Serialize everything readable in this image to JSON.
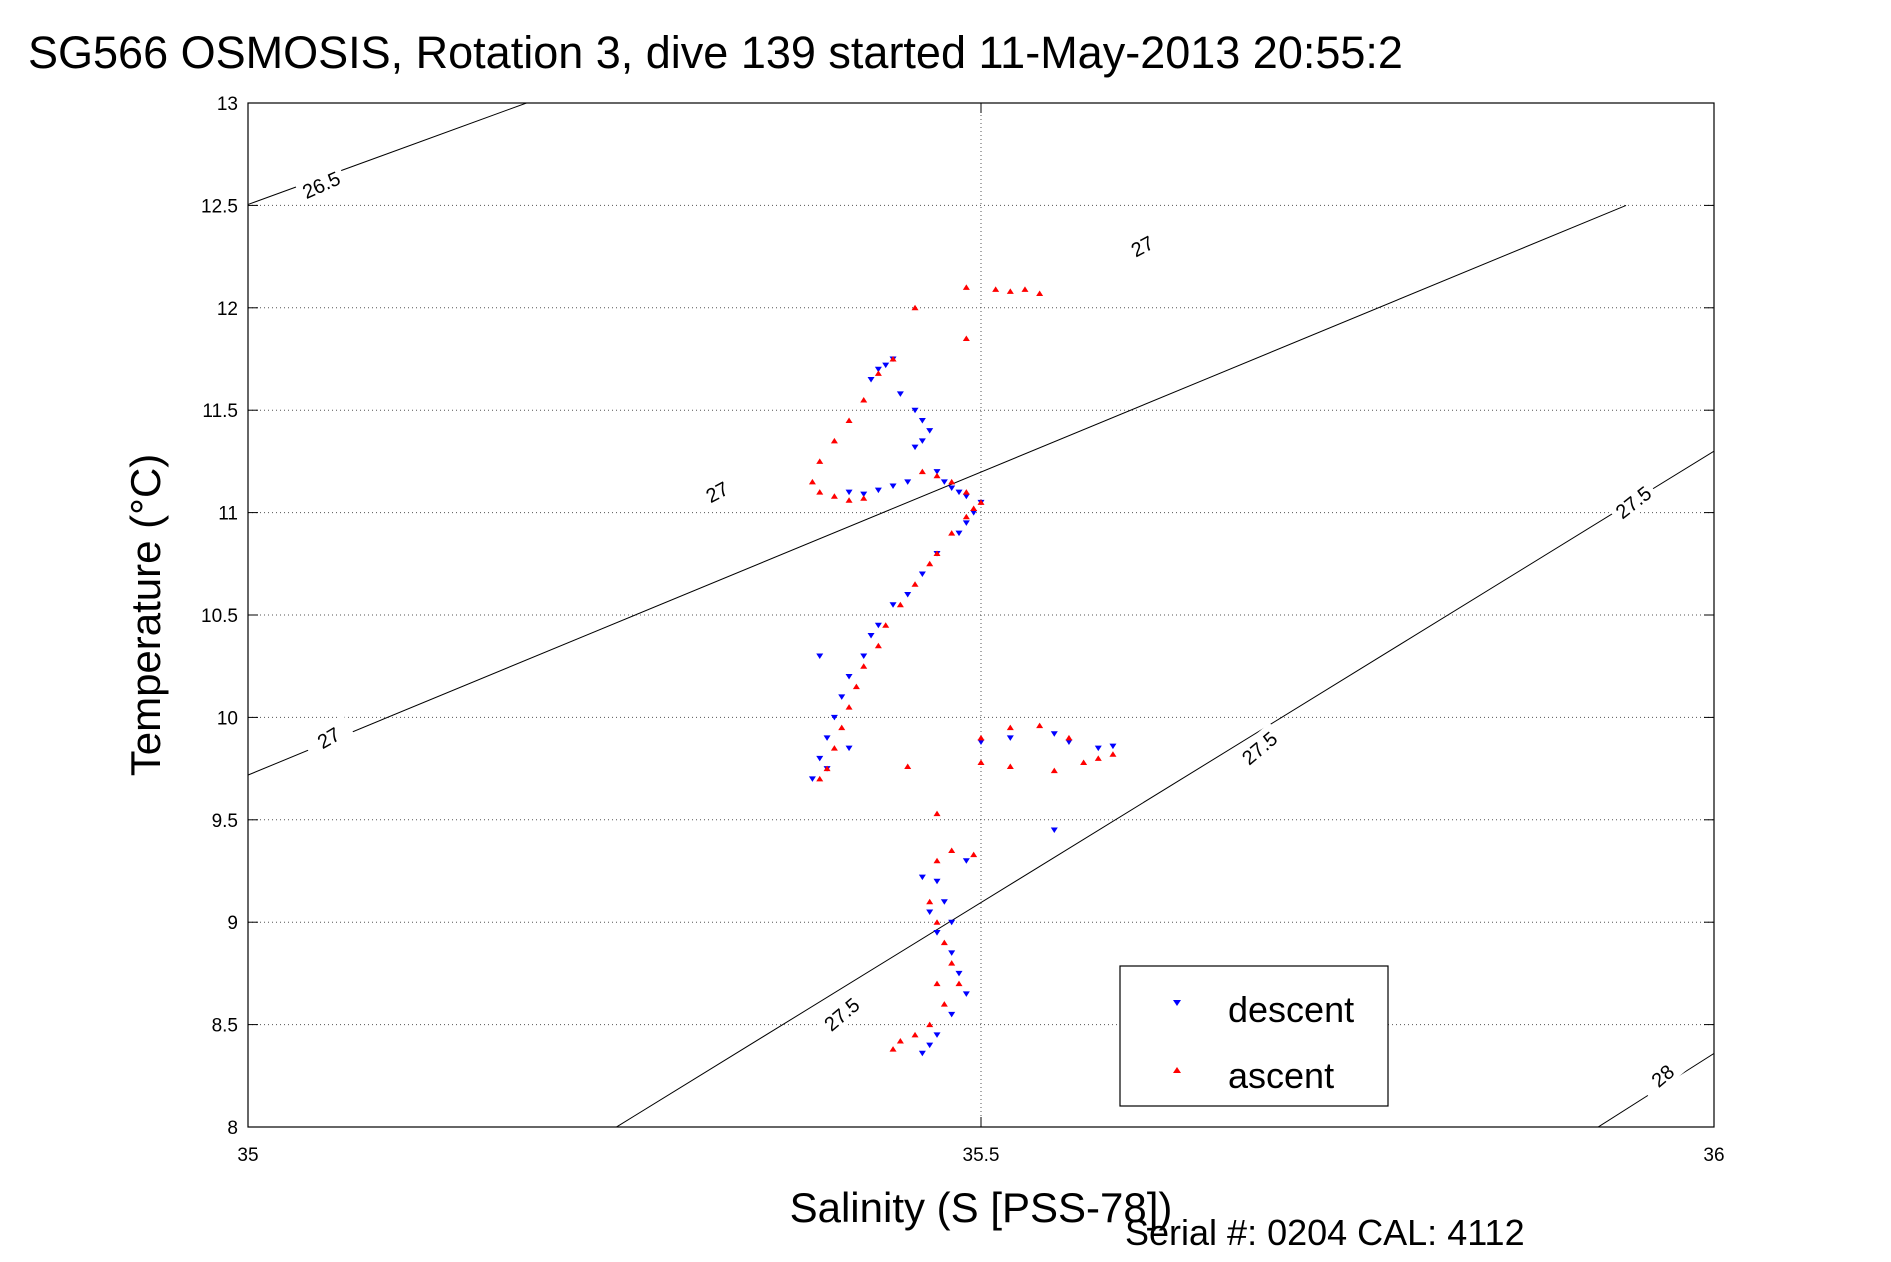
{
  "chart_data": {
    "type": "scatter",
    "title": "SG566 OSMOSIS, Rotation 3, dive 139 started 11-May-2013 20:55:2",
    "xlabel": "Salinity (S [PSS-78])",
    "ylabel": "Temperature (°C)",
    "xlim": [
      35,
      36
    ],
    "ylim": [
      8,
      13
    ],
    "x_ticks": [
      "35",
      "35.5",
      "36"
    ],
    "y_ticks": [
      "8",
      "8.5",
      "9",
      "9.5",
      "10",
      "10.5",
      "11",
      "11.5",
      "12",
      "12.5",
      "13"
    ],
    "grid": "dotted",
    "legend_position": "bottom-right",
    "footer": "Serial #: 0204  CAL: 4112",
    "density_contours": [
      {
        "label": "26.5",
        "points": [
          [
            34.96,
            12.4
          ],
          [
            35.19,
            13.0
          ]
        ]
      },
      {
        "label": "27",
        "points": [
          [
            34.96,
            9.6
          ],
          [
            35.94,
            12.5
          ]
        ]
      },
      {
        "label": "27.5",
        "points": [
          [
            35.24,
            7.95
          ],
          [
            36.0,
            11.3
          ]
        ]
      },
      {
        "label": "28",
        "points": [
          [
            35.91,
            7.95
          ],
          [
            36.02,
            8.45
          ]
        ]
      }
    ],
    "contour_labels": [
      {
        "text": "26.5",
        "x": 35.05,
        "y": 12.6,
        "angle": -24
      },
      {
        "text": "27",
        "x": 35.32,
        "y": 11.1,
        "angle": -28
      },
      {
        "text": "27",
        "x": 35.055,
        "y": 9.9,
        "angle": -30
      },
      {
        "text": "27",
        "x": 35.61,
        "y": 12.3,
        "angle": -28
      },
      {
        "text": "27.5",
        "x": 35.405,
        "y": 8.55,
        "angle": -40
      },
      {
        "text": "27.5",
        "x": 35.69,
        "y": 9.85,
        "angle": -40
      },
      {
        "text": "27.5",
        "x": 35.945,
        "y": 11.05,
        "angle": -38
      },
      {
        "text": "28",
        "x": 35.965,
        "y": 8.25,
        "angle": -40
      }
    ],
    "series": [
      {
        "name": "descent",
        "color": "#0000ff",
        "marker": "triangle-down",
        "points": [
          [
            35.425,
            11.65
          ],
          [
            35.43,
            11.7
          ],
          [
            35.435,
            11.72
          ],
          [
            35.44,
            11.75
          ],
          [
            35.445,
            11.58
          ],
          [
            35.455,
            11.5
          ],
          [
            35.46,
            11.45
          ],
          [
            35.465,
            11.4
          ],
          [
            35.46,
            11.35
          ],
          [
            35.455,
            11.32
          ],
          [
            35.47,
            11.2
          ],
          [
            35.475,
            11.15
          ],
          [
            35.48,
            11.12
          ],
          [
            35.485,
            11.1
          ],
          [
            35.49,
            11.08
          ],
          [
            35.5,
            11.05
          ],
          [
            35.495,
            11.0
          ],
          [
            35.49,
            10.95
          ],
          [
            35.485,
            10.9
          ],
          [
            35.47,
            10.8
          ],
          [
            35.46,
            10.7
          ],
          [
            35.45,
            10.6
          ],
          [
            35.44,
            10.55
          ],
          [
            35.43,
            10.45
          ],
          [
            35.425,
            10.4
          ],
          [
            35.42,
            10.3
          ],
          [
            35.41,
            10.2
          ],
          [
            35.405,
            10.1
          ],
          [
            35.4,
            10.0
          ],
          [
            35.395,
            9.9
          ],
          [
            35.39,
            9.8
          ],
          [
            35.385,
            9.7
          ],
          [
            35.395,
            9.75
          ],
          [
            35.41,
            9.85
          ],
          [
            35.39,
            10.3
          ],
          [
            35.41,
            11.1
          ],
          [
            35.42,
            11.09
          ],
          [
            35.43,
            11.11
          ],
          [
            35.44,
            11.13
          ],
          [
            35.45,
            11.15
          ],
          [
            35.5,
            9.88
          ],
          [
            35.52,
            9.9
          ],
          [
            35.55,
            9.92
          ],
          [
            35.56,
            9.88
          ],
          [
            35.58,
            9.85
          ],
          [
            35.59,
            9.86
          ],
          [
            35.55,
            9.45
          ],
          [
            35.47,
            9.2
          ],
          [
            35.46,
            9.22
          ],
          [
            35.475,
            9.1
          ],
          [
            35.48,
            9.0
          ],
          [
            35.47,
            8.95
          ],
          [
            35.48,
            8.85
          ],
          [
            35.485,
            8.75
          ],
          [
            35.49,
            8.65
          ],
          [
            35.48,
            8.55
          ],
          [
            35.47,
            8.45
          ],
          [
            35.465,
            8.4
          ],
          [
            35.46,
            8.36
          ],
          [
            35.49,
            9.3
          ],
          [
            35.465,
            9.05
          ],
          [
            35.47,
            8.95
          ]
        ]
      },
      {
        "name": "ascent",
        "color": "#ff0000",
        "marker": "triangle-up",
        "points": [
          [
            35.49,
            12.1
          ],
          [
            35.51,
            12.09
          ],
          [
            35.52,
            12.08
          ],
          [
            35.53,
            12.09
          ],
          [
            35.54,
            12.07
          ],
          [
            35.455,
            12.0
          ],
          [
            35.49,
            11.85
          ],
          [
            35.44,
            11.75
          ],
          [
            35.43,
            11.68
          ],
          [
            35.42,
            11.55
          ],
          [
            35.41,
            11.45
          ],
          [
            35.4,
            11.35
          ],
          [
            35.39,
            11.25
          ],
          [
            35.385,
            11.15
          ],
          [
            35.39,
            11.1
          ],
          [
            35.4,
            11.08
          ],
          [
            35.41,
            11.06
          ],
          [
            35.42,
            11.07
          ],
          [
            35.46,
            11.2
          ],
          [
            35.47,
            11.18
          ],
          [
            35.48,
            11.15
          ],
          [
            35.49,
            11.1
          ],
          [
            35.5,
            11.05
          ],
          [
            35.495,
            11.02
          ],
          [
            35.49,
            10.98
          ],
          [
            35.48,
            10.9
          ],
          [
            35.47,
            10.8
          ],
          [
            35.465,
            10.75
          ],
          [
            35.455,
            10.65
          ],
          [
            35.445,
            10.55
          ],
          [
            35.435,
            10.45
          ],
          [
            35.43,
            10.35
          ],
          [
            35.42,
            10.25
          ],
          [
            35.415,
            10.15
          ],
          [
            35.41,
            10.05
          ],
          [
            35.405,
            9.95
          ],
          [
            35.4,
            9.85
          ],
          [
            35.395,
            9.75
          ],
          [
            35.39,
            9.7
          ],
          [
            35.5,
            9.9
          ],
          [
            35.52,
            9.95
          ],
          [
            35.54,
            9.96
          ],
          [
            35.56,
            9.9
          ],
          [
            35.58,
            9.8
          ],
          [
            35.5,
            9.78
          ],
          [
            35.52,
            9.76
          ],
          [
            35.55,
            9.74
          ],
          [
            35.57,
            9.78
          ],
          [
            35.59,
            9.82
          ],
          [
            35.45,
            9.76
          ],
          [
            35.47,
            9.53
          ],
          [
            35.48,
            9.35
          ],
          [
            35.47,
            9.3
          ],
          [
            35.465,
            9.1
          ],
          [
            35.47,
            9.0
          ],
          [
            35.475,
            8.9
          ],
          [
            35.48,
            8.8
          ],
          [
            35.485,
            8.7
          ],
          [
            35.475,
            8.6
          ],
          [
            35.465,
            8.5
          ],
          [
            35.455,
            8.45
          ],
          [
            35.445,
            8.42
          ],
          [
            35.44,
            8.38
          ],
          [
            35.47,
            8.7
          ],
          [
            35.495,
            9.33
          ]
        ]
      }
    ]
  }
}
